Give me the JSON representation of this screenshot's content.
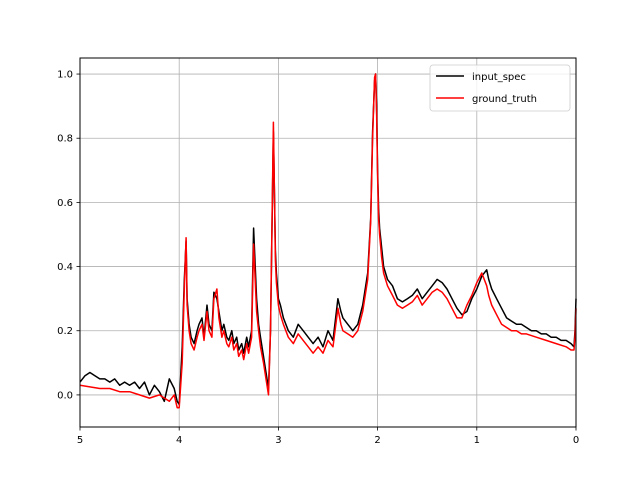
{
  "chart_data": {
    "type": "line",
    "title": "",
    "xlabel": "",
    "ylabel": "",
    "xlim": [
      5,
      0
    ],
    "ylim": [
      -0.1,
      1.05
    ],
    "x_inverted": true,
    "grid": true,
    "legend_position": "upper right",
    "xticks": [
      5,
      4,
      3,
      2,
      1,
      0
    ],
    "xtick_labels": [
      "5",
      "4",
      "3",
      "2",
      "1",
      "0"
    ],
    "yticks": [
      0.0,
      0.2,
      0.4,
      0.6,
      0.8,
      1.0
    ],
    "ytick_labels": [
      "0.0",
      "0.2",
      "0.4",
      "0.6",
      "0.8",
      "1.0"
    ],
    "series": [
      {
        "name": "input_spec",
        "color": "#000000",
        "x": [
          5.0,
          4.95,
          4.9,
          4.85,
          4.8,
          4.75,
          4.7,
          4.65,
          4.6,
          4.55,
          4.5,
          4.45,
          4.4,
          4.35,
          4.3,
          4.25,
          4.2,
          4.15,
          4.1,
          4.05,
          4.02,
          4.0,
          3.97,
          3.95,
          3.93,
          3.92,
          3.9,
          3.88,
          3.85,
          3.82,
          3.8,
          3.77,
          3.75,
          3.72,
          3.7,
          3.67,
          3.65,
          3.62,
          3.6,
          3.57,
          3.55,
          3.52,
          3.5,
          3.47,
          3.45,
          3.42,
          3.4,
          3.37,
          3.35,
          3.32,
          3.3,
          3.27,
          3.25,
          3.22,
          3.2,
          3.18,
          3.15,
          3.12,
          3.1,
          3.08,
          3.05,
          3.03,
          3.02,
          3.0,
          2.98,
          2.95,
          2.9,
          2.85,
          2.8,
          2.75,
          2.7,
          2.65,
          2.6,
          2.55,
          2.5,
          2.45,
          2.4,
          2.37,
          2.35,
          2.3,
          2.25,
          2.2,
          2.15,
          2.1,
          2.07,
          2.05,
          2.03,
          2.02,
          2.01,
          2.0,
          1.99,
          1.98,
          1.96,
          1.94,
          1.9,
          1.85,
          1.8,
          1.75,
          1.7,
          1.65,
          1.6,
          1.55,
          1.5,
          1.45,
          1.4,
          1.35,
          1.3,
          1.25,
          1.2,
          1.15,
          1.1,
          1.05,
          1.0,
          0.95,
          0.9,
          0.88,
          0.85,
          0.8,
          0.75,
          0.7,
          0.65,
          0.6,
          0.55,
          0.5,
          0.45,
          0.4,
          0.35,
          0.3,
          0.25,
          0.2,
          0.15,
          0.1,
          0.05,
          0.02,
          0.01,
          0.0
        ],
        "y": [
          0.04,
          0.06,
          0.07,
          0.06,
          0.05,
          0.05,
          0.04,
          0.05,
          0.03,
          0.04,
          0.03,
          0.04,
          0.02,
          0.04,
          0.0,
          0.03,
          0.01,
          -0.02,
          0.05,
          0.02,
          -0.02,
          -0.03,
          0.15,
          0.35,
          0.48,
          0.3,
          0.22,
          0.18,
          0.16,
          0.2,
          0.22,
          0.24,
          0.18,
          0.28,
          0.22,
          0.2,
          0.32,
          0.3,
          0.26,
          0.2,
          0.22,
          0.18,
          0.17,
          0.2,
          0.16,
          0.18,
          0.14,
          0.16,
          0.13,
          0.18,
          0.15,
          0.2,
          0.52,
          0.3,
          0.22,
          0.18,
          0.12,
          0.06,
          0.02,
          0.2,
          0.82,
          0.45,
          0.38,
          0.3,
          0.28,
          0.24,
          0.2,
          0.18,
          0.22,
          0.2,
          0.18,
          0.16,
          0.18,
          0.15,
          0.2,
          0.17,
          0.3,
          0.26,
          0.24,
          0.22,
          0.2,
          0.22,
          0.28,
          0.38,
          0.55,
          0.82,
          0.98,
          1.0,
          0.9,
          0.7,
          0.58,
          0.52,
          0.46,
          0.4,
          0.36,
          0.34,
          0.3,
          0.29,
          0.3,
          0.31,
          0.33,
          0.3,
          0.32,
          0.34,
          0.36,
          0.35,
          0.33,
          0.3,
          0.27,
          0.25,
          0.26,
          0.3,
          0.33,
          0.37,
          0.39,
          0.36,
          0.33,
          0.3,
          0.27,
          0.24,
          0.23,
          0.22,
          0.22,
          0.21,
          0.2,
          0.2,
          0.19,
          0.19,
          0.18,
          0.18,
          0.17,
          0.17,
          0.16,
          0.15,
          0.2,
          0.3
        ]
      },
      {
        "name": "ground_truth",
        "color": "#ff0000",
        "x": [
          5.0,
          4.9,
          4.8,
          4.7,
          4.6,
          4.5,
          4.4,
          4.3,
          4.2,
          4.1,
          4.05,
          4.02,
          4.0,
          3.97,
          3.95,
          3.93,
          3.92,
          3.9,
          3.88,
          3.85,
          3.82,
          3.8,
          3.77,
          3.75,
          3.72,
          3.7,
          3.67,
          3.65,
          3.62,
          3.6,
          3.57,
          3.55,
          3.52,
          3.5,
          3.47,
          3.45,
          3.42,
          3.4,
          3.37,
          3.35,
          3.32,
          3.3,
          3.27,
          3.25,
          3.22,
          3.2,
          3.18,
          3.15,
          3.12,
          3.1,
          3.08,
          3.05,
          3.03,
          3.02,
          3.0,
          2.98,
          2.95,
          2.9,
          2.85,
          2.8,
          2.75,
          2.7,
          2.65,
          2.6,
          2.55,
          2.5,
          2.45,
          2.4,
          2.37,
          2.35,
          2.3,
          2.25,
          2.2,
          2.15,
          2.1,
          2.07,
          2.05,
          2.03,
          2.02,
          2.01,
          2.0,
          1.99,
          1.98,
          1.96,
          1.94,
          1.9,
          1.85,
          1.8,
          1.75,
          1.7,
          1.65,
          1.6,
          1.55,
          1.5,
          1.45,
          1.4,
          1.35,
          1.3,
          1.25,
          1.2,
          1.15,
          1.1,
          1.05,
          1.0,
          0.95,
          0.9,
          0.88,
          0.85,
          0.8,
          0.75,
          0.7,
          0.65,
          0.6,
          0.55,
          0.5,
          0.4,
          0.3,
          0.2,
          0.1,
          0.05,
          0.02,
          0.01,
          0.0
        ],
        "y": [
          0.03,
          0.025,
          0.02,
          0.02,
          0.01,
          0.01,
          0.0,
          -0.01,
          0.0,
          -0.02,
          0.0,
          -0.04,
          -0.04,
          0.1,
          0.32,
          0.49,
          0.28,
          0.2,
          0.16,
          0.14,
          0.18,
          0.2,
          0.22,
          0.17,
          0.26,
          0.2,
          0.18,
          0.3,
          0.33,
          0.24,
          0.18,
          0.2,
          0.16,
          0.15,
          0.18,
          0.14,
          0.16,
          0.12,
          0.14,
          0.11,
          0.16,
          0.13,
          0.18,
          0.47,
          0.26,
          0.2,
          0.15,
          0.1,
          0.04,
          0.0,
          0.2,
          0.85,
          0.42,
          0.35,
          0.28,
          0.25,
          0.22,
          0.18,
          0.16,
          0.19,
          0.17,
          0.15,
          0.13,
          0.15,
          0.13,
          0.17,
          0.15,
          0.27,
          0.22,
          0.2,
          0.19,
          0.18,
          0.2,
          0.26,
          0.36,
          0.54,
          0.8,
          0.99,
          1.0,
          0.88,
          0.68,
          0.55,
          0.5,
          0.43,
          0.38,
          0.34,
          0.31,
          0.28,
          0.27,
          0.28,
          0.29,
          0.31,
          0.28,
          0.3,
          0.32,
          0.33,
          0.32,
          0.3,
          0.27,
          0.24,
          0.24,
          0.28,
          0.31,
          0.35,
          0.38,
          0.34,
          0.31,
          0.28,
          0.25,
          0.22,
          0.21,
          0.2,
          0.2,
          0.19,
          0.19,
          0.18,
          0.17,
          0.16,
          0.15,
          0.14,
          0.14,
          0.18,
          0.27
        ]
      }
    ]
  }
}
